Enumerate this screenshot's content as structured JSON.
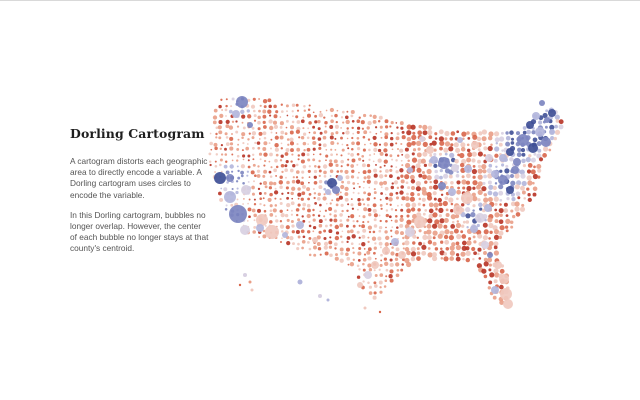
{
  "article": {
    "title": "Dorling Cartogram",
    "paragraphs": [
      "A cartogram distorts each geographic area to directly encode a variable. A Dorling cartogram uses circles to encode the variable.",
      "In this Dorling cartogram, bubbles no longer overlap. However, the center of each bubble no longer stays at that county's centroid."
    ]
  },
  "map": {
    "type": "dorling-cartogram",
    "colors": {
      "strong_blue": "#3f4f96",
      "mid_blue": "#7d86c0",
      "light_blue": "#b3b6dc",
      "pale_purple": "#d8d0e2",
      "pale_red": "#f0c9bf",
      "light_red": "#e99d86",
      "mid_red": "#d8654a",
      "strong_red": "#b73224"
    }
  }
}
